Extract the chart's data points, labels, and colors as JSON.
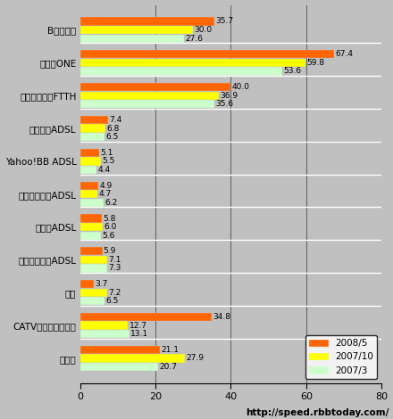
{
  "categories": [
    "Bフレッツ",
    "ひかりONE",
    "他キャリアのFTTH",
    "フレッツADSL",
    "Yahoo!BB ADSL",
    "イーアクセスADSL",
    "アッカADSL",
    "他キャリアのADSL",
    "無線",
    "CATVインターネット",
    "専用線"
  ],
  "series": {
    "2008/5": [
      35.7,
      67.4,
      40.0,
      7.4,
      5.1,
      4.9,
      5.8,
      5.9,
      3.7,
      34.8,
      21.1
    ],
    "2007/10": [
      30.0,
      59.8,
      36.9,
      6.8,
      5.5,
      4.7,
      6.0,
      7.1,
      7.2,
      12.7,
      27.9
    ],
    "2007/3": [
      27.6,
      53.6,
      35.6,
      6.5,
      4.4,
      6.2,
      5.6,
      7.3,
      6.5,
      13.1,
      20.7
    ]
  },
  "colors": {
    "2008/5": "#FF6600",
    "2007/10": "#FFFF00",
    "2007/3": "#CCFFCC"
  },
  "xlim": [
    0,
    80
  ],
  "xticks": [
    0,
    20,
    40,
    60,
    80
  ],
  "bar_height": 0.26,
  "background_color": "#C0C0C0",
  "plot_bg_color": "#C0C0C0",
  "watermark": "http://speed.rbbtoday.com/",
  "vlines": [
    20,
    40,
    60
  ]
}
